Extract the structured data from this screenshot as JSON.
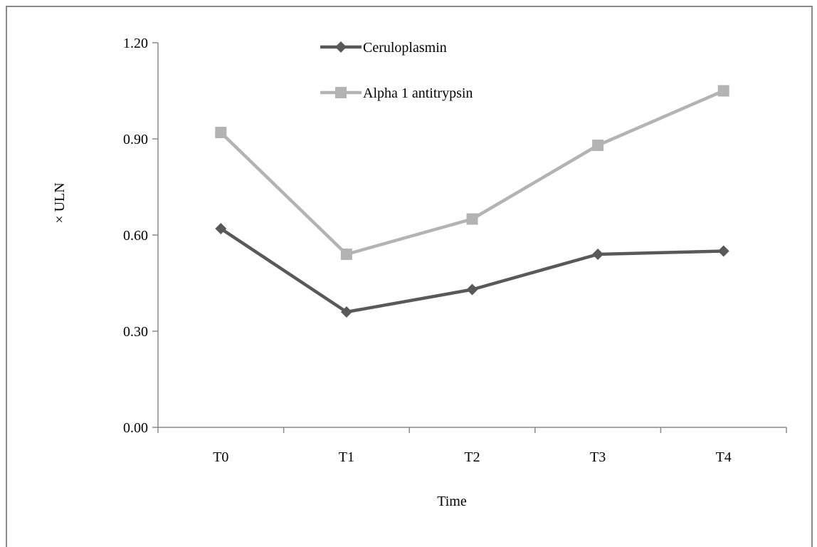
{
  "chart_data": {
    "type": "line",
    "categories": [
      "T0",
      "T1",
      "T2",
      "T3",
      "T4"
    ],
    "series": [
      {
        "name": "Ceruloplasmin",
        "values": [
          0.62,
          0.36,
          0.43,
          0.54,
          0.55
        ],
        "color": "#595959",
        "marker": "diamond"
      },
      {
        "name": "Alpha 1 antitrypsin",
        "values": [
          0.92,
          0.54,
          0.65,
          0.88,
          1.05
        ],
        "color": "#b3b3b3",
        "marker": "square"
      }
    ],
    "xlabel": "Time",
    "ylabel": "× ULN",
    "ylim": [
      0,
      1.2
    ],
    "yticks": [
      "0.00",
      "0.30",
      "0.60",
      "0.90",
      "1.20"
    ],
    "yticks_values": [
      0,
      0.3,
      0.6,
      0.9,
      1.2
    ],
    "grid": false,
    "legend_position": "top-center"
  }
}
